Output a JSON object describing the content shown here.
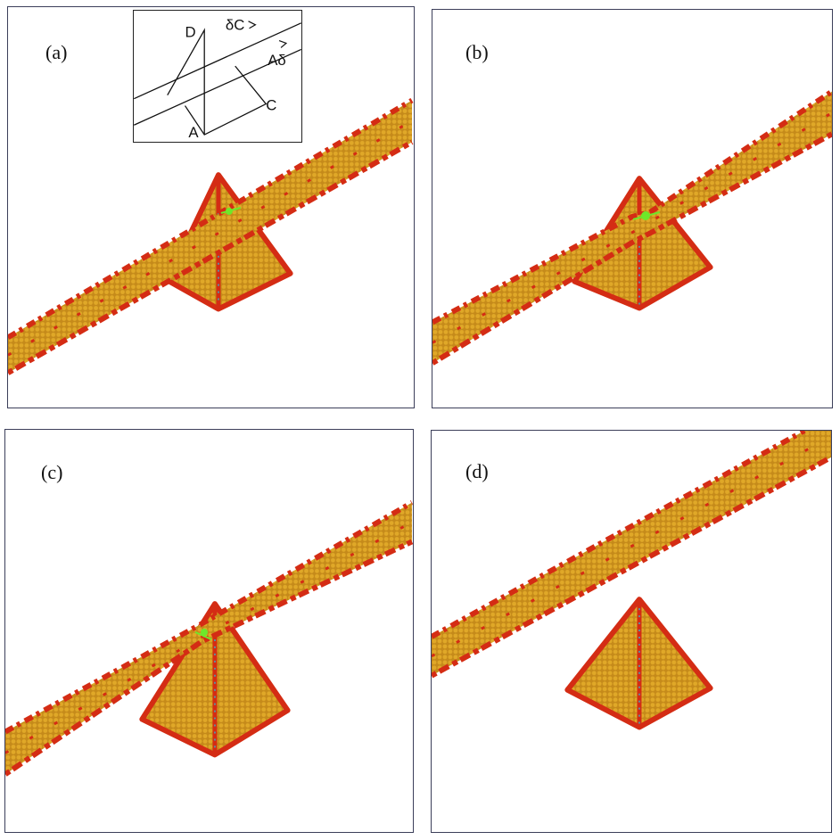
{
  "figure": {
    "panels": [
      {
        "id": "a",
        "label": "(a)"
      },
      {
        "id": "b",
        "label": "(b)"
      },
      {
        "id": "c",
        "label": "(c)"
      },
      {
        "id": "d",
        "label": "(d)"
      }
    ],
    "inset": {
      "label_D": "D",
      "label_deltaC": "δC",
      "label_Adelta": "Aδ",
      "label_C": "C",
      "label_A": "A"
    }
  },
  "colors": {
    "atom_core": "#d8a020",
    "atom_edge": "#d42c14",
    "dislocation_core": "#6ee82a",
    "pyramid_edge_line": "#34b4c8",
    "frame": "#3c3f5a"
  }
}
